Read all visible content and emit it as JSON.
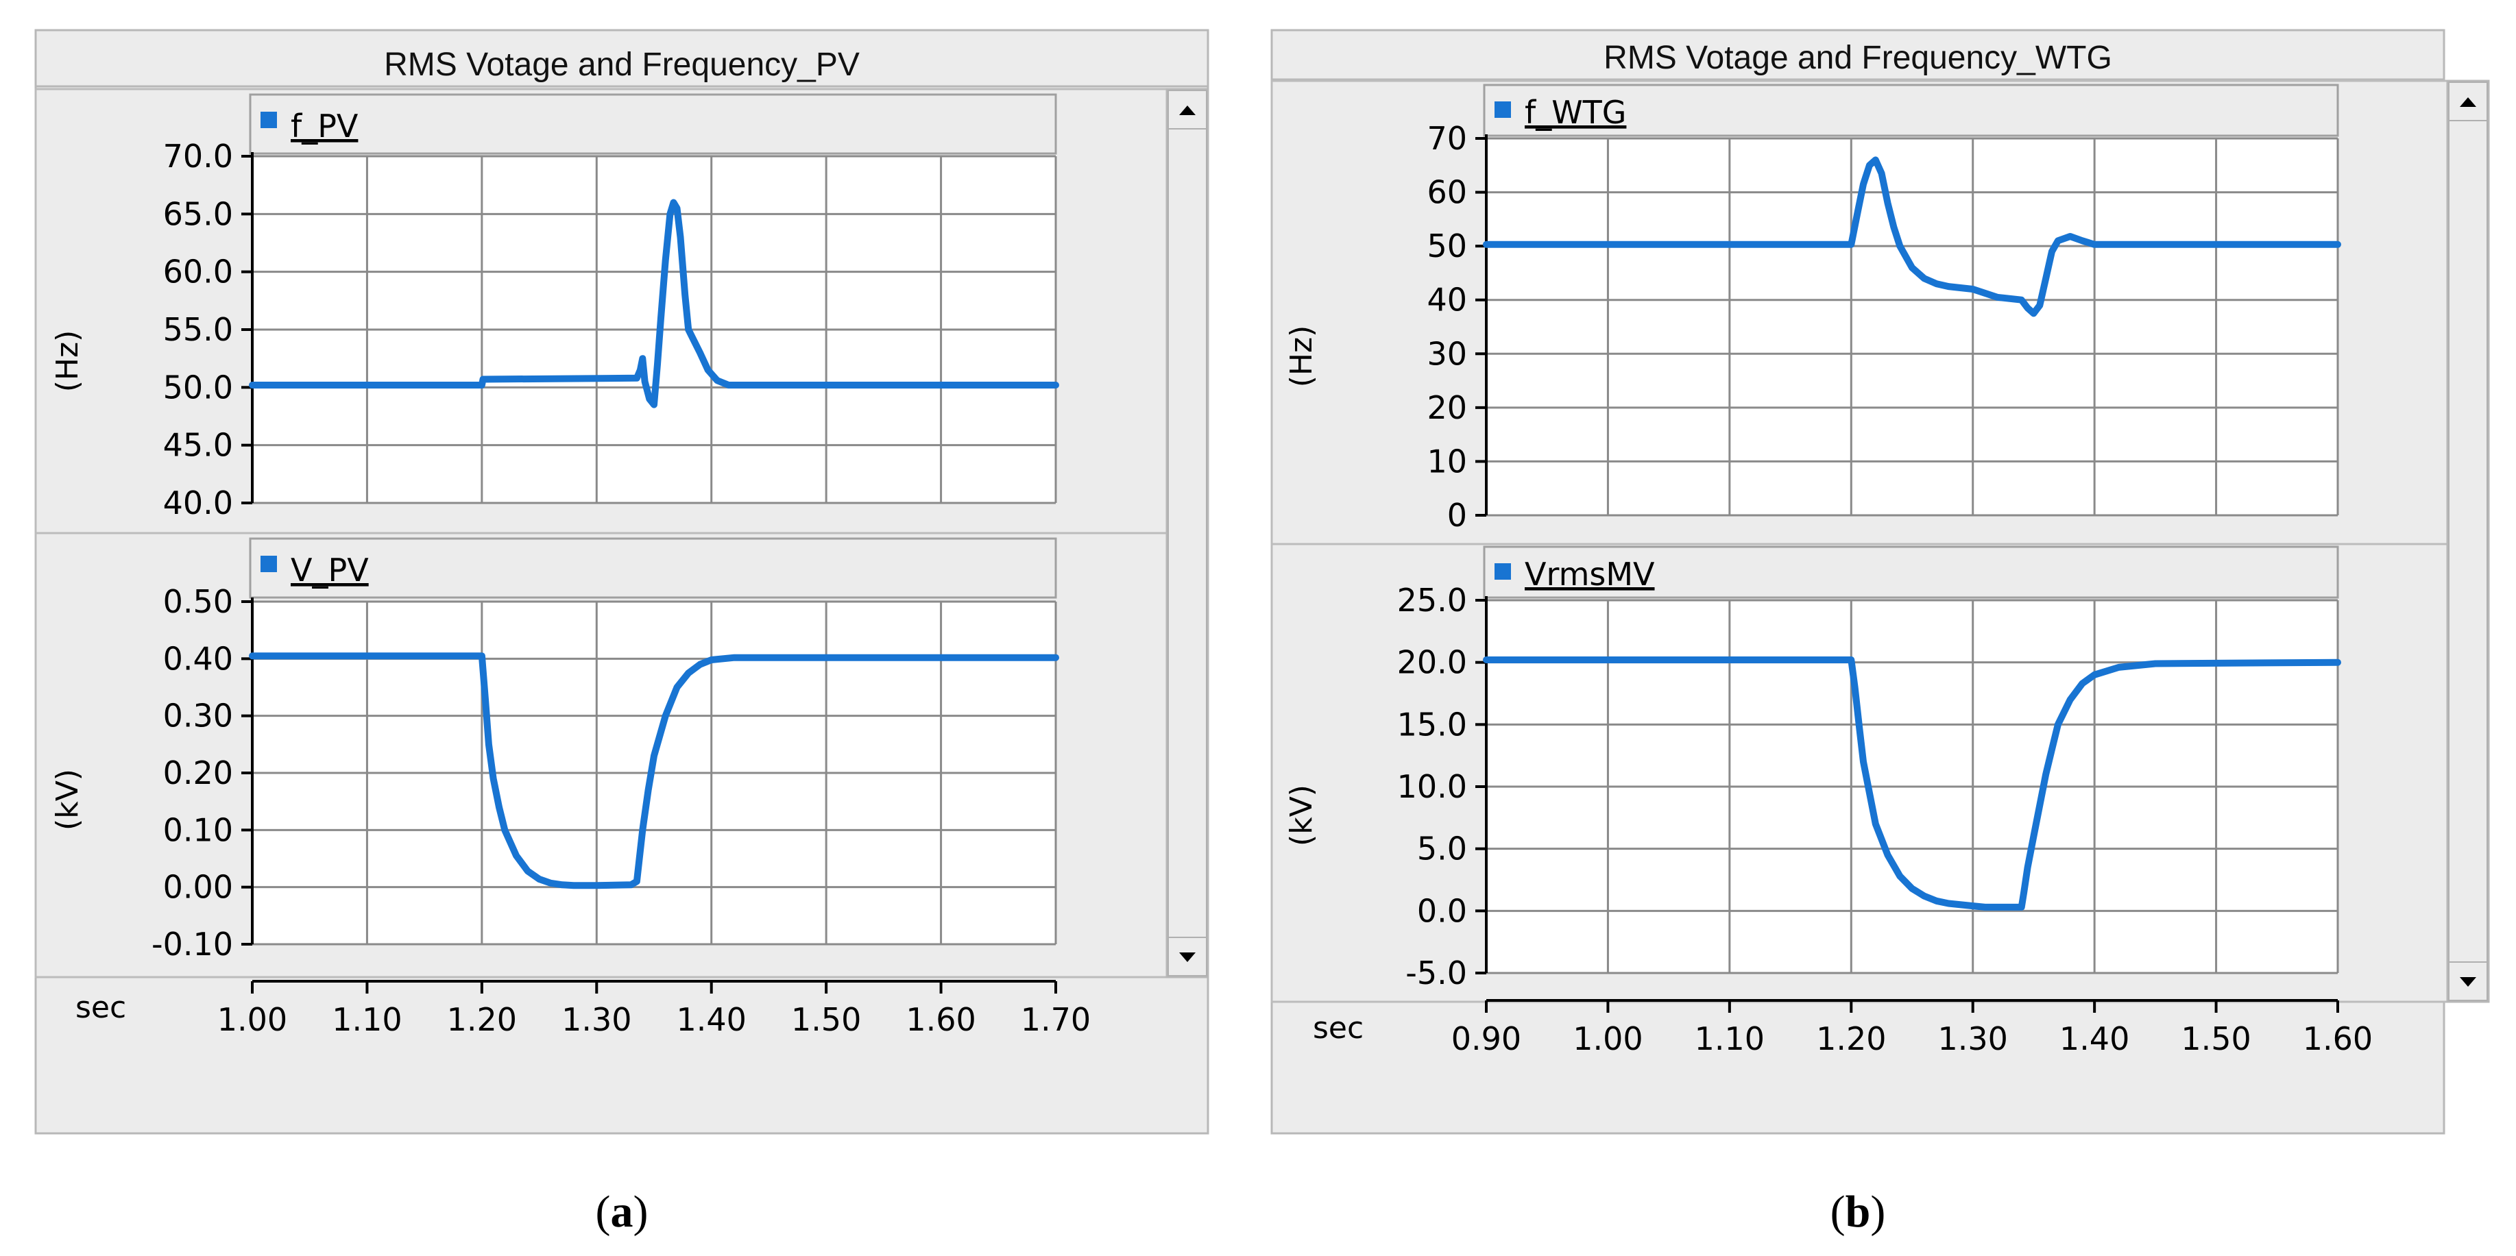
{
  "series_color": "#1874d2",
  "panels": [
    {
      "id": "a",
      "caption_open": "(",
      "caption_letter": "a",
      "caption_close": ")",
      "title": "RMS Votage and Frequency_PV",
      "x_unit": "sec",
      "xlim": [
        1.0,
        1.7
      ],
      "x_ticks": [
        "1.00",
        "1.10",
        "1.20",
        "1.30",
        "1.40",
        "1.50",
        "1.60",
        "1.70"
      ],
      "charts": [
        {
          "type": "line",
          "legend": "f_PV",
          "ylabel": "(Hz)",
          "ylim": [
            40,
            70
          ],
          "y_ticks": [
            "70.0",
            "65.0",
            "60.0",
            "55.0",
            "50.0",
            "45.0",
            "40.0"
          ],
          "series": [
            {
              "name": "f_PV",
              "x": [
                1.0,
                1.2,
                1.201,
                1.335,
                1.338,
                1.34,
                1.342,
                1.346,
                1.35,
                1.353,
                1.356,
                1.36,
                1.364,
                1.367,
                1.37,
                1.373,
                1.377,
                1.38,
                1.385,
                1.39,
                1.397,
                1.405,
                1.415,
                1.7
              ],
              "y": [
                50.2,
                50.2,
                50.7,
                50.8,
                51.5,
                52.5,
                50.5,
                49.0,
                48.5,
                52.0,
                56.0,
                61.0,
                65.0,
                66.0,
                65.5,
                63.0,
                58.0,
                55.0,
                54.0,
                53.0,
                51.5,
                50.6,
                50.2,
                50.2
              ]
            }
          ]
        },
        {
          "type": "line",
          "legend": "V_PV",
          "ylabel": "(kV)",
          "ylim": [
            -0.1,
            0.5
          ],
          "y_ticks": [
            "0.50",
            "0.40",
            "0.30",
            "0.20",
            "0.10",
            "0.00",
            "-0.10"
          ],
          "series": [
            {
              "name": "V_PV",
              "x": [
                1.0,
                1.2,
                1.203,
                1.206,
                1.21,
                1.215,
                1.22,
                1.23,
                1.24,
                1.25,
                1.26,
                1.27,
                1.28,
                1.3,
                1.33,
                1.335,
                1.34,
                1.345,
                1.35,
                1.36,
                1.37,
                1.38,
                1.39,
                1.4,
                1.42,
                1.7
              ],
              "y": [
                0.405,
                0.405,
                0.33,
                0.25,
                0.19,
                0.14,
                0.1,
                0.055,
                0.028,
                0.014,
                0.007,
                0.004,
                0.003,
                0.003,
                0.004,
                0.01,
                0.1,
                0.17,
                0.23,
                0.3,
                0.35,
                0.375,
                0.39,
                0.398,
                0.402,
                0.402
              ]
            }
          ]
        }
      ]
    },
    {
      "id": "b",
      "caption_open": "(",
      "caption_letter": "b",
      "caption_close": ")",
      "title": "RMS Votage and Frequency_WTG",
      "x_unit": "sec",
      "xlim": [
        0.9,
        1.6
      ],
      "x_ticks": [
        "0.90",
        "1.00",
        "1.10",
        "1.20",
        "1.30",
        "1.40",
        "1.50",
        "1.60"
      ],
      "charts": [
        {
          "type": "line",
          "legend": "f_WTG",
          "ylabel": "(Hz)",
          "ylim": [
            0,
            70
          ],
          "y_ticks": [
            "70",
            "60",
            "50",
            "40",
            "30",
            "20",
            "10",
            "0"
          ],
          "series": [
            {
              "name": "f_WTG",
              "x": [
                0.9,
                1.2,
                1.205,
                1.21,
                1.215,
                1.22,
                1.225,
                1.23,
                1.235,
                1.24,
                1.25,
                1.26,
                1.27,
                1.28,
                1.3,
                1.32,
                1.34,
                1.345,
                1.35,
                1.355,
                1.36,
                1.365,
                1.37,
                1.38,
                1.39,
                1.4,
                1.6
              ],
              "y": [
                50.3,
                50.3,
                56.0,
                61.5,
                65.0,
                66.0,
                63.5,
                58.0,
                53.5,
                50.0,
                46.0,
                44.0,
                43.0,
                42.5,
                42.0,
                40.5,
                40.0,
                38.5,
                37.5,
                39.0,
                44.0,
                49.0,
                51.0,
                51.8,
                51.0,
                50.3,
                50.3
              ]
            }
          ]
        },
        {
          "type": "line",
          "legend": "VrmsMV",
          "ylabel": "(kV)",
          "ylim": [
            -5,
            25
          ],
          "y_ticks": [
            "25.0",
            "20.0",
            "15.0",
            "10.0",
            "5.0",
            "0.0",
            "-5.0"
          ],
          "series": [
            {
              "name": "VrmsMV",
              "x": [
                0.9,
                1.2,
                1.203,
                1.207,
                1.21,
                1.215,
                1.22,
                1.23,
                1.24,
                1.25,
                1.26,
                1.27,
                1.28,
                1.3,
                1.31,
                1.34,
                1.342,
                1.345,
                1.35,
                1.355,
                1.36,
                1.365,
                1.37,
                1.38,
                1.39,
                1.4,
                1.42,
                1.45,
                1.6
              ],
              "y": [
                20.2,
                20.2,
                18.0,
                14.5,
                12.0,
                9.5,
                7.0,
                4.5,
                2.8,
                1.8,
                1.2,
                0.8,
                0.6,
                0.4,
                0.3,
                0.3,
                1.5,
                3.5,
                6.0,
                8.5,
                11.0,
                13.0,
                15.0,
                17.0,
                18.3,
                19.0,
                19.6,
                19.9,
                20.0
              ]
            }
          ]
        }
      ]
    }
  ]
}
